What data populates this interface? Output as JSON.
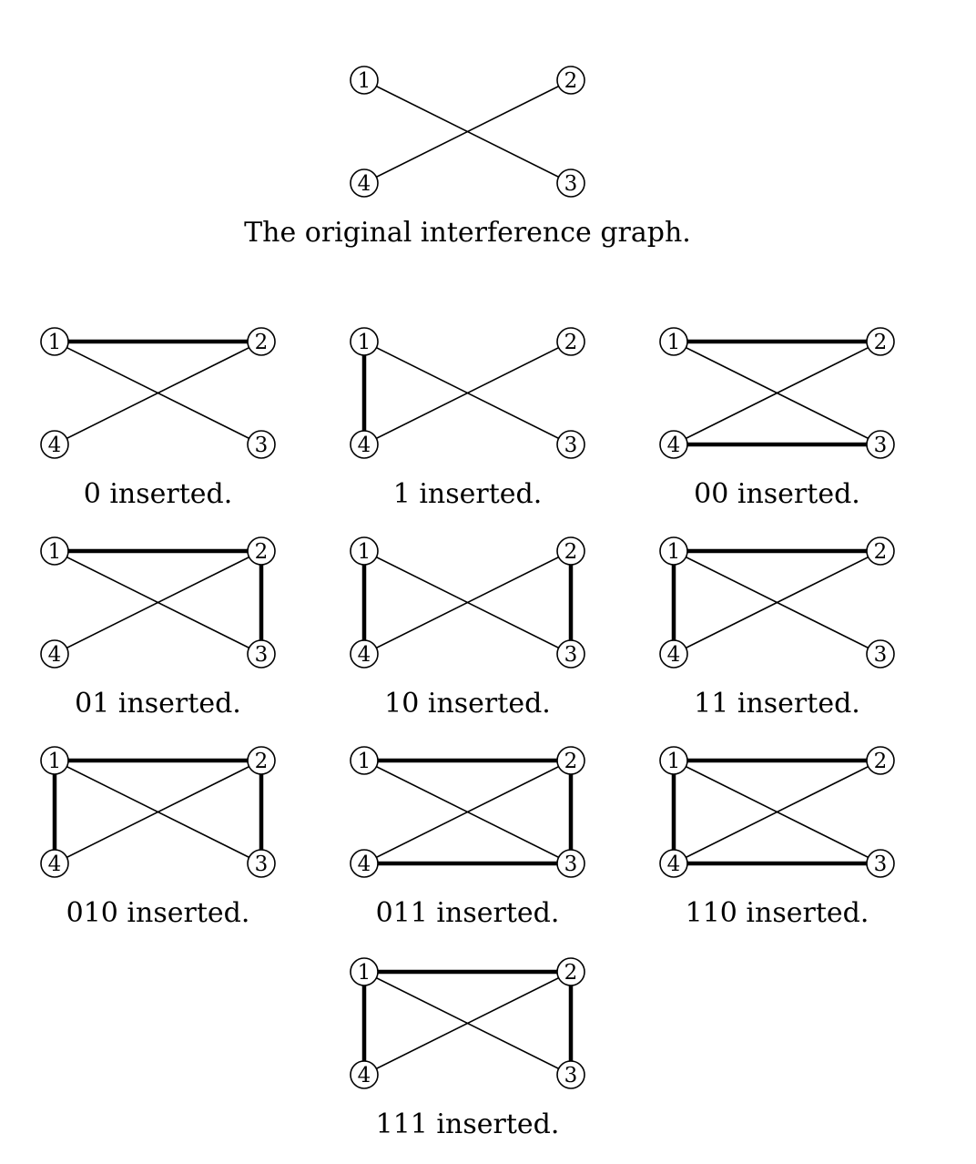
{
  "original": {
    "caption": "The original interference graph.",
    "nodes": [
      "1",
      "2",
      "3",
      "4"
    ],
    "thin_edges": [
      [
        "1",
        "3"
      ],
      [
        "2",
        "4"
      ]
    ],
    "thick_edges": []
  },
  "variants": [
    {
      "caption": "0 inserted.",
      "thin_edges": [
        [
          "1",
          "3"
        ],
        [
          "2",
          "4"
        ]
      ],
      "thick_edges": [
        [
          "1",
          "2"
        ]
      ]
    },
    {
      "caption": "1 inserted.",
      "thin_edges": [
        [
          "1",
          "3"
        ],
        [
          "2",
          "4"
        ]
      ],
      "thick_edges": [
        [
          "1",
          "4"
        ]
      ]
    },
    {
      "caption": "00 inserted.",
      "thin_edges": [
        [
          "1",
          "3"
        ],
        [
          "2",
          "4"
        ]
      ],
      "thick_edges": [
        [
          "1",
          "2"
        ],
        [
          "4",
          "3"
        ]
      ]
    },
    {
      "caption": "01 inserted.",
      "thin_edges": [
        [
          "1",
          "3"
        ],
        [
          "2",
          "4"
        ]
      ],
      "thick_edges": [
        [
          "1",
          "2"
        ],
        [
          "2",
          "3"
        ]
      ]
    },
    {
      "caption": "10 inserted.",
      "thin_edges": [
        [
          "1",
          "3"
        ],
        [
          "2",
          "4"
        ]
      ],
      "thick_edges": [
        [
          "1",
          "4"
        ],
        [
          "2",
          "3"
        ]
      ]
    },
    {
      "caption": "11 inserted.",
      "thin_edges": [
        [
          "1",
          "3"
        ],
        [
          "2",
          "4"
        ]
      ],
      "thick_edges": [
        [
          "1",
          "2"
        ],
        [
          "1",
          "4"
        ]
      ]
    },
    {
      "caption": "010 inserted.",
      "thin_edges": [
        [
          "1",
          "3"
        ],
        [
          "2",
          "4"
        ]
      ],
      "thick_edges": [
        [
          "1",
          "2"
        ],
        [
          "1",
          "4"
        ],
        [
          "2",
          "3"
        ]
      ]
    },
    {
      "caption": "011 inserted.",
      "thin_edges": [
        [
          "1",
          "3"
        ],
        [
          "2",
          "4"
        ]
      ],
      "thick_edges": [
        [
          "1",
          "2"
        ],
        [
          "2",
          "3"
        ],
        [
          "4",
          "3"
        ]
      ]
    },
    {
      "caption": "110 inserted.",
      "thin_edges": [
        [
          "1",
          "3"
        ],
        [
          "2",
          "4"
        ]
      ],
      "thick_edges": [
        [
          "1",
          "2"
        ],
        [
          "1",
          "4"
        ],
        [
          "4",
          "3"
        ]
      ]
    },
    {
      "caption": "111 inserted.",
      "thin_edges": [
        [
          "1",
          "3"
        ],
        [
          "2",
          "4"
        ]
      ],
      "thick_edges": [
        [
          "1",
          "2"
        ],
        [
          "1",
          "4"
        ],
        [
          "2",
          "3"
        ]
      ]
    }
  ]
}
